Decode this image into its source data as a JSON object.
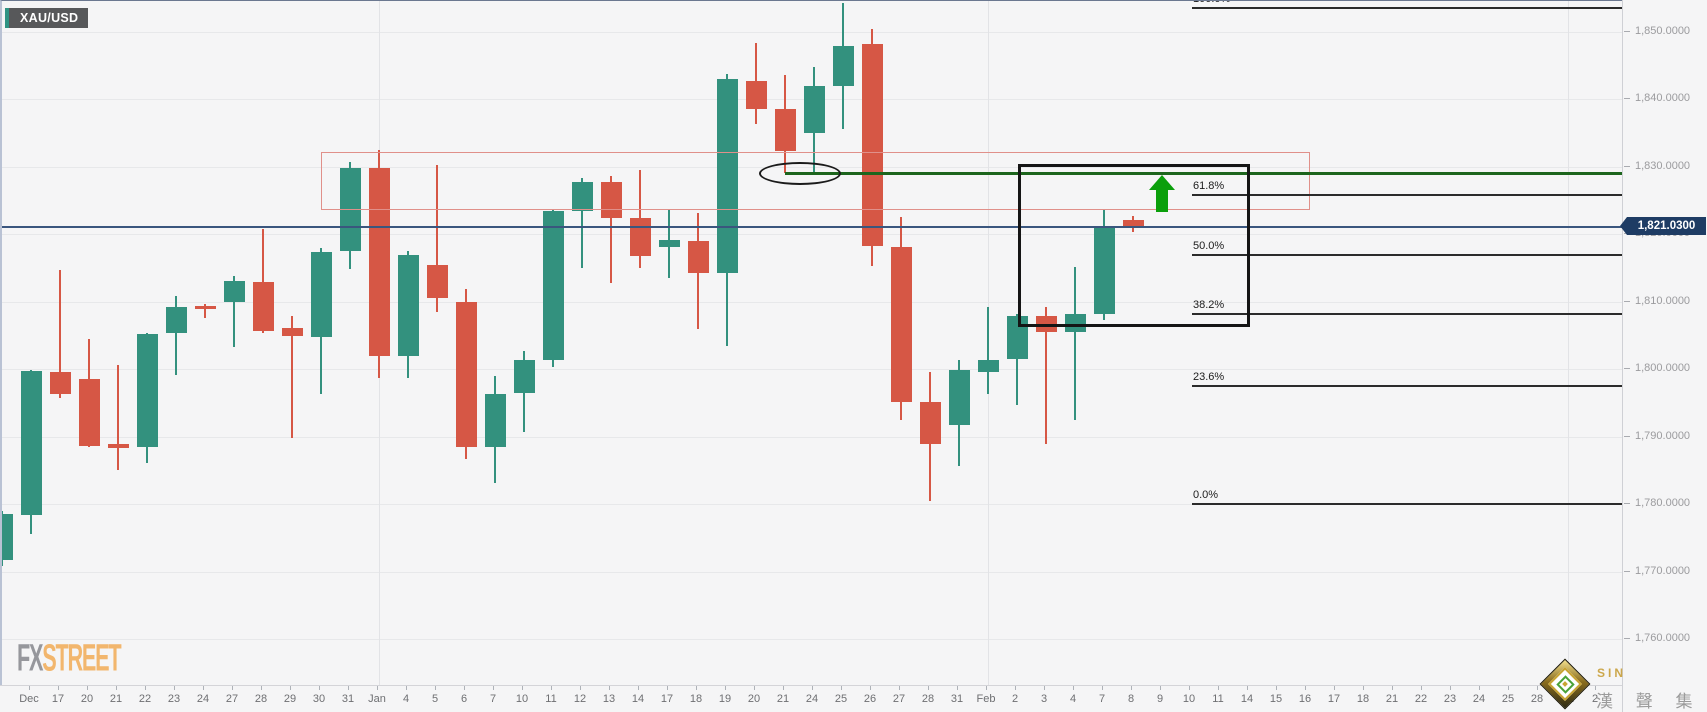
{
  "header": {
    "symbol": "XAU/USD"
  },
  "watermark": {
    "fx": "FX",
    "street": "STREET"
  },
  "branding": {
    "latin": "SIN",
    "company": "漢 聲 集 團"
  },
  "chart_data": {
    "type": "candlestick",
    "symbol": "XAU/USD",
    "x_labels": [
      "Dec",
      "17",
      "20",
      "21",
      "22",
      "23",
      "24",
      "27",
      "28",
      "29",
      "30",
      "31",
      "Jan",
      "4",
      "5",
      "6",
      "7",
      "10",
      "11",
      "12",
      "13",
      "14",
      "17",
      "18",
      "19",
      "20",
      "21",
      "24",
      "25",
      "26",
      "27",
      "28",
      "31",
      "Feb",
      "2",
      "3",
      "4",
      "7",
      "8",
      "9",
      "10",
      "11",
      "14",
      "15",
      "16",
      "17",
      "18",
      "21",
      "22",
      "23",
      "24",
      "25",
      "28",
      "Mar",
      "2"
    ],
    "month_gridline_label_indices": [
      12,
      33,
      53
    ],
    "y_axis": {
      "labels": [
        {
          "text": "1,850.0000",
          "value": 1850
        },
        {
          "text": "1,840.0000",
          "value": 1840
        },
        {
          "text": "1,830.0000",
          "value": 1830
        },
        {
          "text": "1,820.0000",
          "value": 1820
        },
        {
          "text": "1,810.0000",
          "value": 1810
        },
        {
          "text": "1,800.0000",
          "value": 1800
        },
        {
          "text": "1,790.0000",
          "value": 1790
        },
        {
          "text": "1,780.0000",
          "value": 1780
        },
        {
          "text": "1,770.0000",
          "value": 1770
        },
        {
          "text": "1,760.0000",
          "value": 1760
        }
      ]
    },
    "last_price": {
      "text": "1,821.0300",
      "value": 1821.03
    },
    "fib_retracement": {
      "levels": [
        {
          "label": "100.0%",
          "price": 1853.6
        },
        {
          "label": "61.8%",
          "price": 1825.9
        },
        {
          "label": "50.0%",
          "price": 1817.0
        },
        {
          "label": "38.2%",
          "price": 1808.3
        },
        {
          "label": "23.6%",
          "price": 1797.6
        },
        {
          "label": "0.0%",
          "price": 1780.1
        }
      ]
    },
    "candles": [
      {
        "date": "Dec 15",
        "o": 1771.7,
        "h": 1778.9,
        "l": 1770.8,
        "c": 1778.5
      },
      {
        "date": "Dec 16",
        "o": 1778.4,
        "h": 1799.9,
        "l": 1775.6,
        "c": 1799.7
      },
      {
        "date": "Dec 17",
        "o": 1799.6,
        "h": 1814.7,
        "l": 1795.7,
        "c": 1796.3
      },
      {
        "date": "Dec 20",
        "o": 1798.5,
        "h": 1804.4,
        "l": 1788.4,
        "c": 1788.6
      },
      {
        "date": "Dec 21",
        "o": 1788.9,
        "h": 1800.6,
        "l": 1785.0,
        "c": 1788.3
      },
      {
        "date": "Dec 22",
        "o": 1788.4,
        "h": 1805.4,
        "l": 1786.1,
        "c": 1805.2
      },
      {
        "date": "Dec 23",
        "o": 1805.3,
        "h": 1810.8,
        "l": 1799.1,
        "c": 1809.2
      },
      {
        "date": "Dec 24",
        "o": 1809.3,
        "h": 1809.6,
        "l": 1807.6,
        "c": 1808.9
      },
      {
        "date": "Dec 27",
        "o": 1809.9,
        "h": 1813.8,
        "l": 1803.3,
        "c": 1813.0
      },
      {
        "date": "Dec 28",
        "o": 1812.9,
        "h": 1820.7,
        "l": 1805.3,
        "c": 1805.6
      },
      {
        "date": "Dec 29",
        "o": 1806.1,
        "h": 1807.9,
        "l": 1789.8,
        "c": 1804.9
      },
      {
        "date": "Dec 30",
        "o": 1804.7,
        "h": 1817.9,
        "l": 1796.3,
        "c": 1817.3
      },
      {
        "date": "Dec 31",
        "o": 1817.5,
        "h": 1830.7,
        "l": 1814.8,
        "c": 1829.8
      },
      {
        "date": "Jan 3",
        "o": 1829.8,
        "h": 1832.4,
        "l": 1798.7,
        "c": 1801.9
      },
      {
        "date": "Jan 4",
        "o": 1801.9,
        "h": 1817.5,
        "l": 1798.7,
        "c": 1816.9
      },
      {
        "date": "Jan 5",
        "o": 1815.4,
        "h": 1830.2,
        "l": 1808.4,
        "c": 1810.5
      },
      {
        "date": "Jan 6",
        "o": 1809.9,
        "h": 1811.9,
        "l": 1786.7,
        "c": 1788.4
      },
      {
        "date": "Jan 7",
        "o": 1788.4,
        "h": 1799.0,
        "l": 1783.1,
        "c": 1796.3
      },
      {
        "date": "Jan 10",
        "o": 1796.4,
        "h": 1802.7,
        "l": 1790.7,
        "c": 1801.3
      },
      {
        "date": "Jan 11",
        "o": 1801.3,
        "h": 1823.7,
        "l": 1800.3,
        "c": 1823.4
      },
      {
        "date": "Jan 12",
        "o": 1823.4,
        "h": 1828.3,
        "l": 1815.0,
        "c": 1827.7
      },
      {
        "date": "Jan 13",
        "o": 1827.7,
        "h": 1828.6,
        "l": 1812.7,
        "c": 1822.4
      },
      {
        "date": "Jan 14",
        "o": 1822.4,
        "h": 1829.5,
        "l": 1815.0,
        "c": 1816.7
      },
      {
        "date": "Jan 17",
        "o": 1818.1,
        "h": 1823.7,
        "l": 1813.5,
        "c": 1819.1
      },
      {
        "date": "Jan 18",
        "o": 1819.0,
        "h": 1823.1,
        "l": 1805.9,
        "c": 1814.2
      },
      {
        "date": "Jan 19",
        "o": 1814.2,
        "h": 1843.7,
        "l": 1803.4,
        "c": 1843.0
      },
      {
        "date": "Jan 20",
        "o": 1842.7,
        "h": 1848.3,
        "l": 1836.3,
        "c": 1838.5
      },
      {
        "date": "Jan 21",
        "o": 1838.5,
        "h": 1843.6,
        "l": 1829.0,
        "c": 1832.3
      },
      {
        "date": "Jan 24",
        "o": 1835.0,
        "h": 1844.7,
        "l": 1828.9,
        "c": 1841.9
      },
      {
        "date": "Jan 25",
        "o": 1841.9,
        "h": 1854.2,
        "l": 1835.6,
        "c": 1847.9
      },
      {
        "date": "Jan 26",
        "o": 1848.1,
        "h": 1850.4,
        "l": 1815.3,
        "c": 1818.2
      },
      {
        "date": "Jan 27",
        "o": 1818.1,
        "h": 1822.5,
        "l": 1792.4,
        "c": 1795.1
      },
      {
        "date": "Jan 28",
        "o": 1795.1,
        "h": 1799.6,
        "l": 1780.4,
        "c": 1788.9
      },
      {
        "date": "Jan 31",
        "o": 1791.7,
        "h": 1801.3,
        "l": 1785.6,
        "c": 1799.9
      },
      {
        "date": "Feb 1",
        "o": 1799.6,
        "h": 1809.2,
        "l": 1796.3,
        "c": 1801.3
      },
      {
        "date": "Feb 2",
        "o": 1801.5,
        "h": 1808.1,
        "l": 1794.7,
        "c": 1807.9
      },
      {
        "date": "Feb 3",
        "o": 1807.9,
        "h": 1809.2,
        "l": 1788.9,
        "c": 1805.5
      },
      {
        "date": "Feb 4",
        "o": 1805.5,
        "h": 1815.1,
        "l": 1792.4,
        "c": 1808.1
      },
      {
        "date": "Feb 7",
        "o": 1808.1,
        "h": 1823.7,
        "l": 1807.2,
        "c": 1821.2
      },
      {
        "date": "Feb 8",
        "o": 1822.1,
        "h": 1822.7,
        "l": 1820.3,
        "c": 1821.2
      }
    ],
    "annotations": {
      "resistance_zone": {
        "from_candle": 11.0,
        "to_candle": 45.1,
        "price_top": 1832.2,
        "price_bottom": 1823.6
      },
      "breakout_box": {
        "from_candle": 35.05,
        "to_candle": 43.05,
        "price_top": 1830.4,
        "price_bottom": 1806.2
      },
      "horizontal_ray": {
        "from_candle": 27.0,
        "price": 1829.0
      },
      "ellipse_highlight": {
        "center_candle": 27.5,
        "price": 1829.0
      },
      "up_arrow": {
        "center_candle": 40.0,
        "price_tip": 1828.7
      }
    },
    "colors": {
      "bull": "#33917e",
      "bear": "#d65745",
      "ray_green": "#1d651d",
      "arrow_green": "#0b9f0b",
      "zone_red": "#e0908a",
      "last_price_navy": "#1e3c64",
      "box_black": "#151515",
      "fib_black": "#2b2b2b"
    }
  }
}
